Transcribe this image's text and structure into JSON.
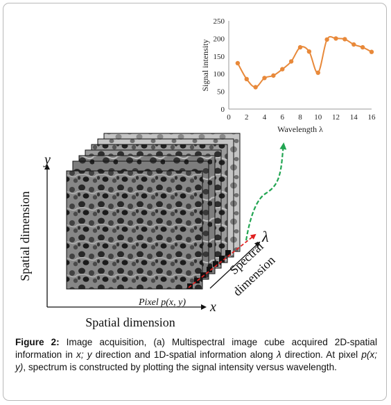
{
  "chart_data": {
    "type": "line",
    "xlabel": "Wavelength λ",
    "ylabel": "Signal intensity",
    "xlim": [
      0,
      16
    ],
    "ylim": [
      0,
      250
    ],
    "x_ticks": [
      "0",
      "2",
      "4",
      "6",
      "8",
      "10",
      "12",
      "14",
      "16"
    ],
    "y_ticks": [
      "0",
      "50",
      "100",
      "150",
      "200",
      "250"
    ],
    "grid": false,
    "color": "#e8893a",
    "series": [
      {
        "x": [
          1,
          2,
          3,
          4,
          5,
          6,
          7,
          8,
          9,
          10,
          11,
          12,
          13,
          14,
          15,
          16
        ],
        "values": [
          130,
          85,
          62,
          88,
          95,
          113,
          135,
          175,
          163,
          103,
          197,
          200,
          198,
          183,
          175,
          162
        ]
      }
    ]
  },
  "diagram": {
    "y_axis_letter": "y",
    "x_axis_letter": "x",
    "lambda_letter": "λ",
    "spatial_dimension_vertical": "Spatial dimension",
    "spatial_dimension_horizontal": "Spatial dimension",
    "spectral_line1": "Spectral",
    "spectral_line2": "dimension",
    "pixel_label": "Pixel p(x, y)",
    "arrow_color": "#22a552",
    "pixel_color": "#e02020"
  },
  "caption": {
    "label": "Figure 2:",
    "t1": " Image acquisition, (a) Multispectral image cube acquired 2D-spatial information in ",
    "i1": "x; y",
    "t2": " direction and 1D-spatial information along ",
    "i2": "λ",
    "t3": " direction. At pixel ",
    "i3": "p(x; y)",
    "t4": ", spectrum is constructed by plotting the signal intensity versus wavelength."
  }
}
